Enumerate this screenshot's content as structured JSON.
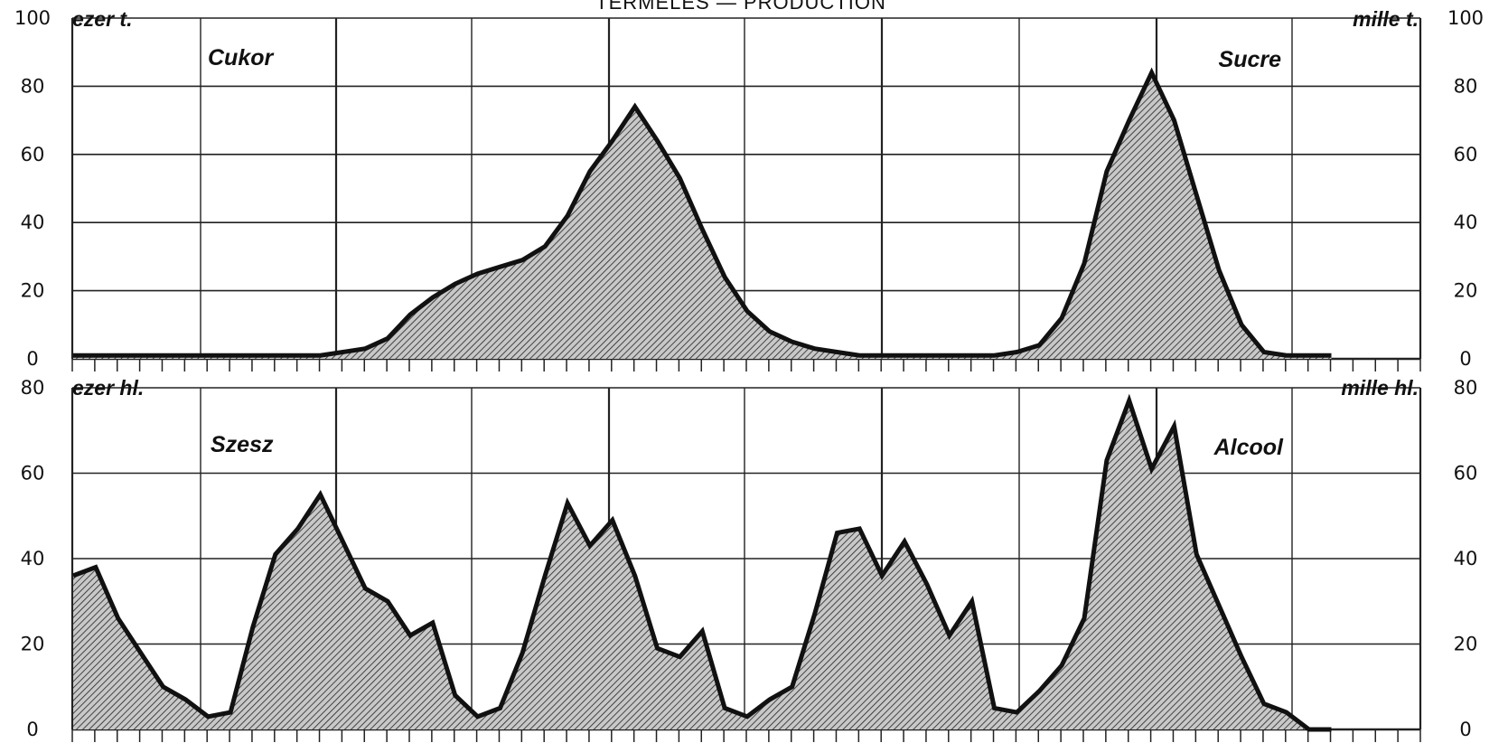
{
  "title": "TERMELÉS — PRODUCTION",
  "chart_data": [
    {
      "type": "area",
      "panel": "top",
      "label_left": "Cukor",
      "label_right": "Sucre",
      "unit_left": "ezer t.",
      "unit_right": "mille t.",
      "ylim": [
        0,
        100
      ],
      "yticks": [
        "0",
        "20",
        "40",
        "60",
        "80",
        "100"
      ],
      "x_count": 57,
      "grid": true,
      "series": [
        {
          "values": [
            1,
            1,
            1,
            1,
            1,
            1,
            1,
            1,
            1,
            1,
            1,
            1,
            2,
            3,
            6,
            13,
            18,
            22,
            25,
            27,
            29,
            33,
            42,
            55,
            64,
            74,
            64,
            53,
            38,
            24,
            14,
            8,
            5,
            3,
            2,
            1,
            1,
            1,
            1,
            1,
            1,
            1,
            2,
            4,
            12,
            28,
            55,
            70,
            84,
            70,
            48,
            26,
            10,
            2,
            1,
            1,
            1
          ]
        }
      ]
    },
    {
      "type": "area",
      "panel": "bottom",
      "label_left": "Szesz",
      "label_right": "Alcool",
      "unit_left": "ezer hl.",
      "unit_right": "mille hl.",
      "ylim": [
        0,
        80
      ],
      "yticks": [
        "0",
        "20",
        "40",
        "60",
        "80"
      ],
      "x_count": 57,
      "grid": true,
      "series": [
        {
          "values": [
            36,
            38,
            26,
            18,
            10,
            7,
            3,
            4,
            24,
            41,
            47,
            55,
            44,
            33,
            30,
            22,
            25,
            8,
            3,
            5,
            18,
            36,
            53,
            43,
            49,
            36,
            19,
            17,
            23,
            5,
            3,
            7,
            10,
            27,
            46,
            47,
            36,
            44,
            34,
            22,
            30,
            5,
            4,
            9,
            15,
            26,
            63,
            77,
            61,
            71,
            41,
            29,
            17,
            6,
            4,
            0,
            0
          ]
        }
      ]
    }
  ]
}
